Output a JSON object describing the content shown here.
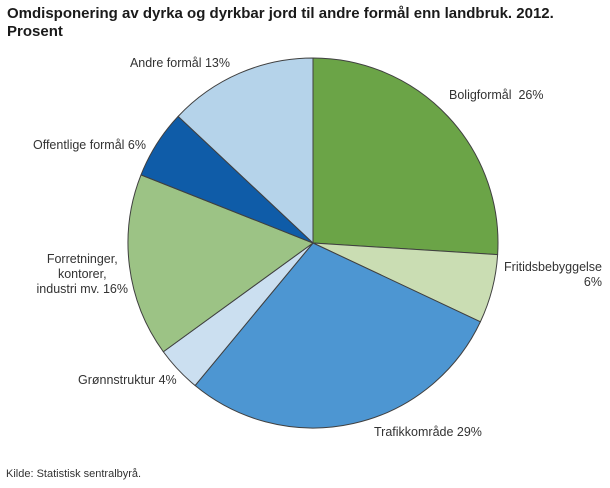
{
  "header": {
    "title": "Omdisponering av dyrka og dyrkbar jord til andre formål enn landbruk. 2012.\nProsent"
  },
  "footer": {
    "source": "Kilde: Statistisk sentralbyrå."
  },
  "chart_data": {
    "type": "pie",
    "title": "Omdisponering av dyrka og dyrkbar jord til andre formål enn landbruk. 2012. Prosent",
    "source": "Kilde: Statistisk sentralbyrå.",
    "start_angle_deg": 0,
    "direction": "clockwise",
    "total": 100,
    "stroke": "#404040",
    "legend": "none (labels placed around pie)",
    "slices": [
      {
        "label": "Boligformål",
        "value": 26,
        "color": "#6BA447",
        "display": "Boligformål  26%"
      },
      {
        "label": "Fritidsbebyggelse",
        "value": 6,
        "color": "#CADDB3",
        "display": "Fritidsbebyggelse\n6%"
      },
      {
        "label": "Trafikkområde",
        "value": 29,
        "color": "#4D96D2",
        "display": "Trafikkområde 29%"
      },
      {
        "label": "Grønnstruktur",
        "value": 4,
        "color": "#CBDFF0",
        "display": "Grønnstruktur 4%"
      },
      {
        "label": "Forretninger, kontorer, industri mv.",
        "value": 16,
        "color": "#9CC385",
        "display": "Forretninger,\nkontorer,\nindustri mv. 16%"
      },
      {
        "label": "Offentlige formål",
        "value": 6,
        "color": "#0F5CA8",
        "display": "Offentlige formål 6%"
      },
      {
        "label": "Andre formål",
        "value": 13,
        "color": "#B5D3EA",
        "display": "Andre formål 13%"
      }
    ]
  }
}
